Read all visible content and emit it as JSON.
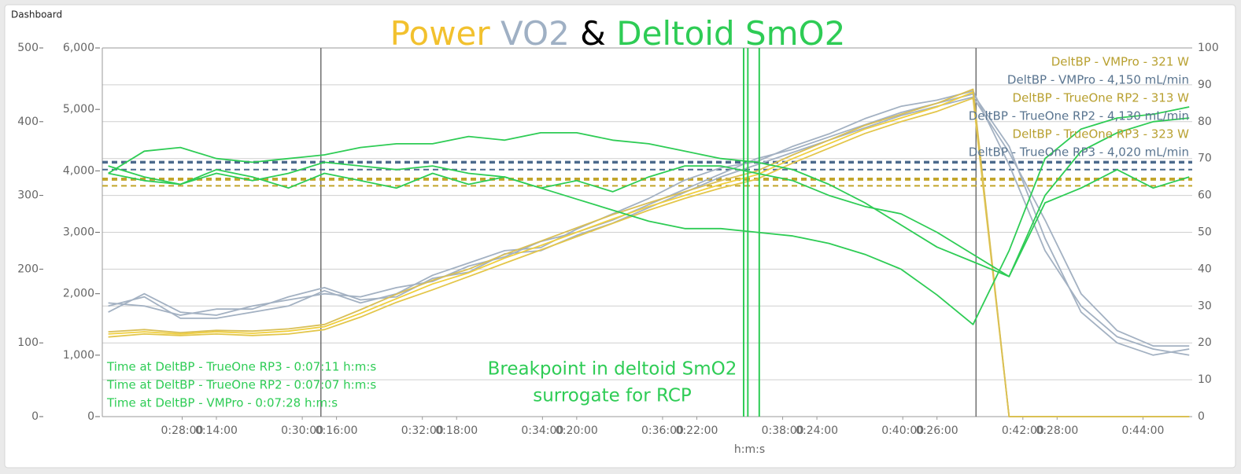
{
  "page": {
    "header": "Dashboard"
  },
  "chart_data": {
    "type": "line",
    "title": [
      {
        "text": "Power",
        "color": "#f2c12e"
      },
      {
        "text": "VO2",
        "color": "#9fb0c4"
      },
      {
        "text": "&",
        "color": "#000000"
      },
      {
        "text": "Deltoid SmO2",
        "color": "#2ecc55"
      }
    ],
    "xlabel": "h:m:s",
    "x": [
      12.2,
      12.8,
      13.4,
      14.0,
      14.6,
      15.2,
      15.8,
      16.4,
      17.0,
      17.6,
      18.2,
      18.8,
      19.4,
      20.0,
      20.6,
      21.2,
      21.8,
      22.4,
      23.0,
      23.6,
      24.2,
      24.8,
      25.4,
      26.0,
      26.6,
      27.2,
      27.8,
      28.4,
      29.0,
      29.6,
      30.2
    ],
    "xlim": [
      12.1,
      30.25
    ],
    "xticks": [
      {
        "value": 14,
        "label": "0:14:00"
      },
      {
        "value": 16,
        "label": "0:16:00"
      },
      {
        "value": 18,
        "label": "0:18:00"
      },
      {
        "value": 20,
        "label": "0:20:00"
      },
      {
        "value": 22,
        "label": "0:22:00"
      },
      {
        "value": 24,
        "label": "0:24:00"
      },
      {
        "value": 26,
        "label": "0:26:00"
      },
      {
        "value": 28,
        "label": "0:28:00"
      }
    ],
    "x2lim": [
      26.67,
      44.82
    ],
    "x2ticks": [
      {
        "value": 28,
        "label": "0:28:00"
      },
      {
        "value": 30,
        "label": "0:30:00"
      },
      {
        "value": 32,
        "label": "0:32:00"
      },
      {
        "value": 34,
        "label": "0:34:00"
      },
      {
        "value": 36,
        "label": "0:36:00"
      },
      {
        "value": 38,
        "label": "0:38:00"
      },
      {
        "value": 40,
        "label": "0:40:00"
      },
      {
        "value": 42,
        "label": "0:42:00"
      },
      {
        "value": 44,
        "label": "0:44:00"
      }
    ],
    "ylim": [
      0,
      500
    ],
    "yticks": [
      0,
      100,
      200,
      300,
      400,
      500
    ],
    "y3lim": [
      0,
      6000
    ],
    "y3ticks": [
      0,
      {
        "value": 1000,
        "label": "1,000"
      },
      {
        "value": 2000,
        "label": "2,000"
      },
      {
        "value": 3000,
        "label": "3,000"
      },
      {
        "value": 4000,
        "label": "4,000"
      },
      {
        "value": 5000,
        "label": "5,000"
      },
      {
        "value": 6000,
        "label": "6,000"
      }
    ],
    "y2lim": [
      0,
      100
    ],
    "y2ticks": [
      0,
      10,
      20,
      30,
      40,
      50,
      60,
      70,
      80,
      90,
      100
    ],
    "grid": true,
    "series": [
      {
        "axis": "y3",
        "color": "#a3b1c2",
        "values": [
          1800,
          1950,
          1600,
          1600,
          1700,
          1800,
          2050,
          1850,
          2000,
          2300,
          2500,
          2700,
          2750,
          3050,
          3300,
          3550,
          3850,
          4050,
          4150,
          4400,
          4600,
          4850,
          5050,
          5150,
          5300,
          4100,
          2700,
          1800,
          1300,
          1100,
          1000
        ]
      },
      {
        "axis": "y3",
        "color": "#a3b1c2",
        "values": [
          1700,
          2000,
          1700,
          1650,
          1800,
          1900,
          2000,
          1950,
          2100,
          2200,
          2450,
          2600,
          2850,
          3000,
          3200,
          3450,
          3700,
          3950,
          4200,
          4350,
          4550,
          4750,
          4950,
          5100,
          5250,
          4400,
          2900,
          1700,
          1200,
          1000,
          1100
        ]
      },
      {
        "axis": "y3",
        "color": "#a3b1c2",
        "values": [
          1850,
          1800,
          1650,
          1750,
          1750,
          1950,
          2100,
          1900,
          1950,
          2250,
          2350,
          2650,
          2700,
          2950,
          3150,
          3400,
          3650,
          3900,
          4100,
          4300,
          4500,
          4700,
          4900,
          5050,
          5200,
          4300,
          3200,
          2000,
          1400,
          1150,
          1150
        ]
      },
      {
        "axis": "y",
        "color": "#f0cf3e",
        "values": [
          112,
          115,
          112,
          115,
          113,
          116,
          122,
          140,
          160,
          180,
          195,
          215,
          232,
          250,
          268,
          285,
          300,
          315,
          328,
          350,
          370,
          390,
          405,
          420,
          440,
          0,
          0,
          0,
          0,
          0,
          0
        ]
      },
      {
        "axis": "y",
        "color": "#e3c64a",
        "values": [
          108,
          112,
          110,
          112,
          110,
          112,
          118,
          135,
          155,
          172,
          190,
          208,
          226,
          244,
          262,
          280,
          296,
          310,
          322,
          344,
          364,
          384,
          400,
          414,
          432,
          0,
          0,
          0,
          0,
          0,
          0
        ]
      },
      {
        "axis": "y",
        "color": "#d9bf55",
        "values": [
          115,
          118,
          114,
          117,
          116,
          119,
          125,
          145,
          166,
          185,
          200,
          220,
          238,
          256,
          274,
          290,
          305,
          320,
          333,
          355,
          375,
          395,
          410,
          425,
          444,
          0,
          0,
          0,
          0,
          0,
          0
        ]
      },
      {
        "axis": "y2",
        "color": "#2ecc55",
        "values": [
          66,
          72,
          73,
          70,
          69,
          70,
          71,
          73,
          74,
          74,
          76,
          75,
          77,
          77,
          75,
          74,
          72,
          70,
          69,
          67,
          63,
          58,
          52,
          46,
          42,
          38,
          60,
          72,
          77,
          80,
          81
        ]
      },
      {
        "axis": "y2",
        "color": "#2ecc55",
        "values": [
          68,
          65,
          63,
          67,
          65,
          62,
          66,
          64,
          62,
          66,
          63,
          65,
          62,
          64,
          61,
          65,
          68,
          68,
          66,
          64,
          60,
          57,
          55,
          50,
          44,
          38,
          58,
          62,
          67,
          62,
          65
        ]
      },
      {
        "axis": "y2",
        "color": "#2ecc55",
        "values": [
          66,
          64,
          63,
          66,
          64,
          66,
          69,
          68,
          67,
          68,
          66,
          65,
          62,
          59,
          56,
          53,
          51,
          51,
          50,
          49,
          47,
          44,
          40,
          33,
          25,
          45,
          70,
          78,
          81,
          82,
          84
        ]
      }
    ],
    "thresholds": [
      {
        "label": "DeltBP - VMPro - 321 W",
        "value": 321,
        "axis": "y",
        "color": "#c2a52a",
        "text_color": "#b8a030"
      },
      {
        "label": "DeltBP - VMPro - 4,150 mL/min",
        "value": 4150,
        "axis": "y3",
        "color": "#4c6a8c",
        "text_color": "#5a7590"
      },
      {
        "label": "DeltBP - TrueOne RP2 - 313 W",
        "value": 313,
        "axis": "y",
        "color": "#c2a52a",
        "text_color": "#b8a030"
      },
      {
        "label": "DeltBP - TrueOne RP2 - 4,130 mL/min",
        "value": 4130,
        "axis": "y3",
        "color": "#4c6a8c",
        "text_color": "#5a7590"
      },
      {
        "label": "DeltBP - TrueOne RP3 - 323 W",
        "value": 323,
        "axis": "y",
        "color": "#c2a52a",
        "text_color": "#b8a030"
      },
      {
        "label": "DeltBP - TrueOne RP3 - 4,020 mL/min",
        "value": 4020,
        "axis": "y3",
        "color": "#4c6a8c",
        "text_color": "#5a7590"
      }
    ],
    "markers": {
      "x": [
        15.74,
        26.65
      ],
      "color": "#707070"
    },
    "breakpoints": {
      "x": [
        22.78,
        22.85,
        23.04
      ],
      "color": "#2ecc55"
    },
    "breakpoint_times": [
      "Time at DeltBP - TrueOne RP3 - 0:07:11 h:m:s",
      "Time at DeltBP - TrueOne RP2 - 0:07:07 h:m:s",
      "Time at DeltBP - VMPro - 0:07:28 h:m:s"
    ],
    "annotation": [
      "Breakpoint in deltoid SmO2",
      "surrogate for RCP"
    ]
  }
}
